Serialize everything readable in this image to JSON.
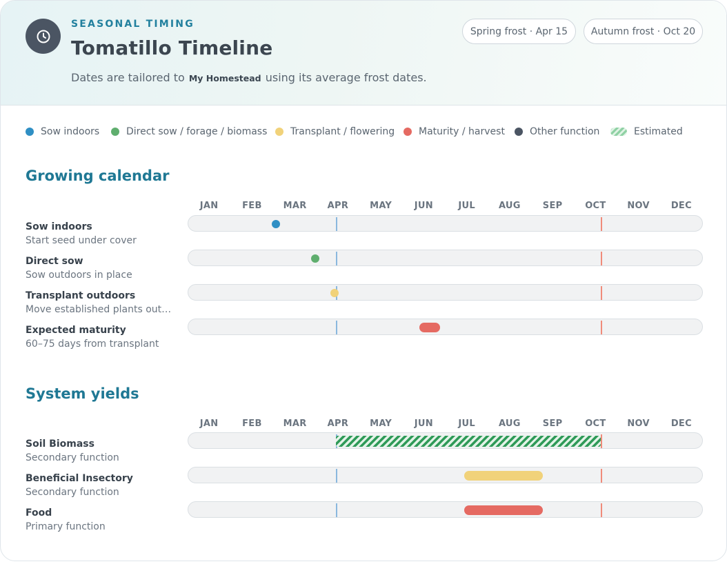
{
  "header": {
    "eyebrow": "SEASONAL TIMING",
    "title": "Tomatillo Timeline",
    "icon": "clock-icon",
    "subtitle_before": "Dates are tailored to",
    "homestead": "My Homestead",
    "subtitle_after": "using its average frost dates.",
    "spring_frost": "Spring frost · Apr 15",
    "autumn_frost": "Autumn frost · Oct 20"
  },
  "legend": [
    {
      "label": "Sow indoors",
      "color": "#2f8fc4"
    },
    {
      "label": "Direct sow / forage / biomass",
      "color": "#5fae6e"
    },
    {
      "label": "Transplant / flowering",
      "color": "#f1d27a"
    },
    {
      "label": "Maturity / harvest",
      "color": "#e56a62"
    },
    {
      "label": "Other function",
      "color": "#4b5563"
    },
    {
      "label": "Estimated",
      "color": "#8fd1a4"
    }
  ],
  "months": [
    "JAN",
    "FEB",
    "MAR",
    "APR",
    "MAY",
    "JUN",
    "JUL",
    "AUG",
    "SEP",
    "OCT",
    "NOV",
    "DEC"
  ],
  "frost_days": {
    "spring": 105,
    "autumn": 293
  },
  "growing_calendar": {
    "title": "Growing calendar",
    "rows": [
      {
        "label": "Sow indoors",
        "sub": "Start seed under cover",
        "type": "dot",
        "day": 62,
        "color": "#2f8fc4"
      },
      {
        "label": "Direct sow",
        "sub": "Sow outdoors in place",
        "type": "dot",
        "day": 90,
        "color": "#5fae6e"
      },
      {
        "label": "Transplant outdoors",
        "sub": "Move established plants outdoors",
        "type": "dot",
        "day": 104,
        "color": "#f1d27a"
      },
      {
        "label": "Expected maturity",
        "sub": "60–75 days from transplant",
        "type": "bar",
        "start": 164,
        "end": 179,
        "color": "#e56a62"
      }
    ]
  },
  "system_yields": {
    "title": "System yields",
    "rows": [
      {
        "label": "Soil Biomass",
        "sub": "Secondary function",
        "type": "striped",
        "start": 105,
        "end": 293,
        "color": "#2f9a58"
      },
      {
        "label": "Beneficial Insectory",
        "sub": "Secondary function",
        "type": "bar",
        "start": 196,
        "end": 252,
        "color": "#f1d27a"
      },
      {
        "label": "Food",
        "sub": "Primary function",
        "type": "bar",
        "start": 196,
        "end": 252,
        "color": "#e56a62"
      }
    ]
  }
}
